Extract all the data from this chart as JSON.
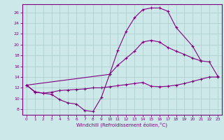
{
  "xlabel": "Windchill (Refroidissement éolien,°C)",
  "background_color": "#cce8e8",
  "grid_color": "#aacccc",
  "line_color": "#800080",
  "xlim": [
    -0.5,
    23.5
  ],
  "ylim": [
    7.0,
    27.5
  ],
  "xticks": [
    0,
    1,
    2,
    3,
    4,
    5,
    6,
    7,
    8,
    9,
    10,
    11,
    12,
    13,
    14,
    15,
    16,
    17,
    18,
    19,
    20,
    21,
    22,
    23
  ],
  "yticks": [
    8,
    10,
    12,
    14,
    16,
    18,
    20,
    22,
    24,
    26
  ],
  "curve1_x": [
    0,
    1,
    2,
    3,
    4,
    5,
    6,
    7,
    8,
    9,
    10,
    11,
    12,
    13,
    14,
    15,
    16,
    17,
    18,
    20,
    21
  ],
  "curve1_y": [
    12.5,
    11.2,
    11.0,
    10.8,
    9.8,
    9.2,
    9.0,
    7.8,
    7.6,
    10.2,
    14.5,
    19.0,
    22.5,
    25.0,
    26.5,
    26.8,
    26.8,
    26.2,
    23.2,
    19.7,
    17.0
  ],
  "curve2_x": [
    0,
    1,
    2,
    3,
    4,
    5,
    6,
    7,
    8,
    9,
    10,
    11,
    12,
    13,
    14,
    15,
    16,
    17,
    18,
    19,
    20,
    21,
    22,
    23
  ],
  "curve2_y": [
    12.5,
    11.3,
    11.0,
    11.2,
    11.5,
    11.6,
    11.7,
    11.8,
    12.0,
    12.0,
    12.2,
    12.4,
    12.6,
    12.8,
    13.0,
    12.3,
    12.2,
    12.3,
    12.5,
    12.8,
    13.2,
    13.6,
    14.0,
    14.0
  ],
  "curve3_x": [
    0,
    10,
    11,
    12,
    13,
    14,
    15,
    16,
    17,
    18,
    19,
    20,
    21,
    22,
    23
  ],
  "curve3_y": [
    12.5,
    14.5,
    16.2,
    17.5,
    18.8,
    20.5,
    20.8,
    20.5,
    19.5,
    18.8,
    18.2,
    17.5,
    17.0,
    16.8,
    14.2
  ]
}
